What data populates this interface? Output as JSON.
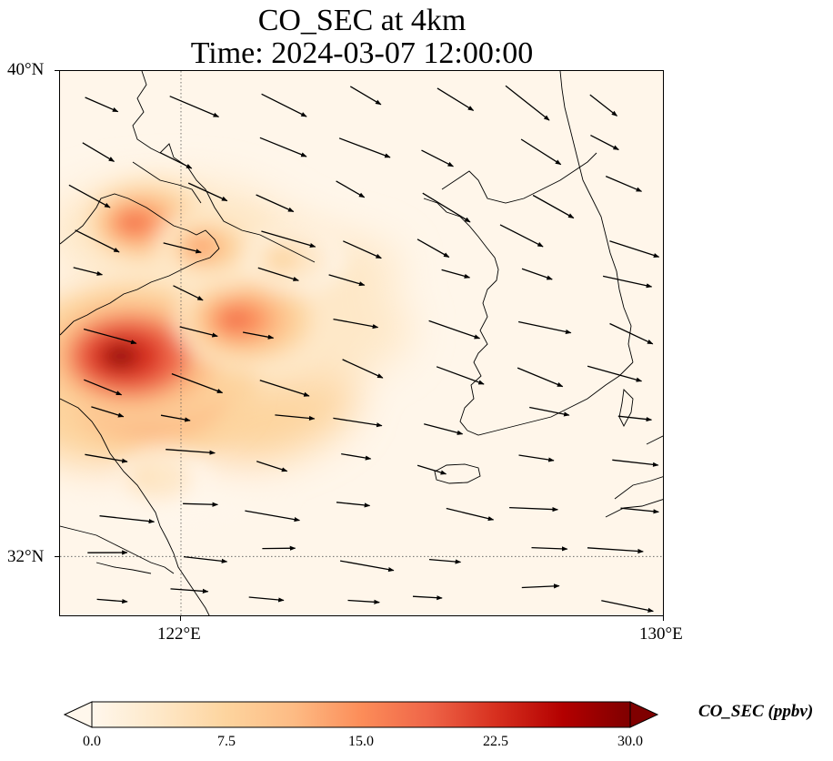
{
  "title": {
    "line1": "CO_SEC at 4km",
    "line2": "Time: 2024-03-07 12:00:00"
  },
  "axes": {
    "lat_labels": [
      "40°N",
      "32°N"
    ],
    "lon_labels": [
      "122°E",
      "130°E"
    ],
    "lon_range": [
      120,
      130
    ],
    "lat_range": [
      31,
      40
    ],
    "gridlines": "dotted"
  },
  "colorbar": {
    "label": "CO_SEC (ppbv)",
    "ticks": [
      "0.0",
      "7.5",
      "15.0",
      "22.5",
      "30.0"
    ],
    "range": [
      0,
      30
    ],
    "extend": "both",
    "colormap": "OrRd",
    "colors": [
      "#fff7ec",
      "#fee8c8",
      "#fdd49e",
      "#fdbb84",
      "#fc8d59",
      "#ef6548",
      "#d7301f",
      "#b30000",
      "#7f0000"
    ]
  },
  "chart_data": {
    "type": "heatmap",
    "title": "CO_SEC at 4km\nTime: 2024-03-07 12:00:00",
    "variable": "CO_SEC",
    "units": "ppbv",
    "level": "4km",
    "time": "2024-03-07 12:00:00",
    "lon_range": [
      120,
      130
    ],
    "lat_range": [
      31,
      40
    ],
    "value_range": [
      0,
      30
    ],
    "plumes": [
      {
        "lon": 121.2,
        "lat": 34.8,
        "peak": 30
      },
      {
        "lon": 121.0,
        "lat": 35.3,
        "peak": 30
      },
      {
        "lon": 122.9,
        "lat": 35.9,
        "peak": 20
      },
      {
        "lon": 121.2,
        "lat": 37.5,
        "peak": 17
      },
      {
        "lon": 122.3,
        "lat": 37.1,
        "peak": 14
      },
      {
        "lon": 123.6,
        "lat": 36.9,
        "peak": 9
      },
      {
        "lon": 121.4,
        "lat": 33.3,
        "peak": 7
      }
    ],
    "vectors": "wind field, predominantly west-northwesterly to westerly flow"
  }
}
